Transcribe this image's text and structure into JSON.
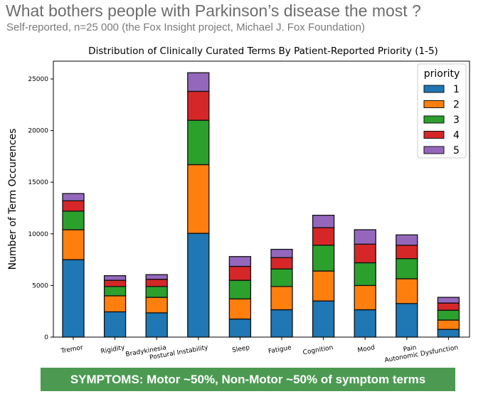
{
  "heading": "What bothers people with Parkinson’s disease the most ?",
  "subheading": "Self-reported, n=25 000 (the Fox Insight project, Michael J. Fox Foundation)",
  "banner": "SYMPTOMS: Motor ~50%,  Non-Motor ~50% of symptom terms",
  "chart_data": {
    "type": "bar",
    "stacked": true,
    "title": "Distribution of Clinically Curated Terms By Patient-Reported Priority (1-5)",
    "xlabel": "",
    "ylabel": "Number of Term Occurences",
    "ylim": [
      0,
      26500
    ],
    "yticks": [
      0,
      5000,
      10000,
      15000,
      20000,
      25000
    ],
    "categories": [
      "Tremor",
      "Rigidity",
      "Bradykinesia",
      "Postural Instability",
      "Sleep",
      "Fatigue",
      "Cognition",
      "Mood",
      "Pain",
      "Autonomic Dysfunction"
    ],
    "legend_title": "priority",
    "legend_position": "top-right",
    "series": [
      {
        "name": "1",
        "color": "#1f77b4",
        "values": [
          7500,
          2450,
          2350,
          10050,
          1750,
          2650,
          3500,
          2650,
          3250,
          750
        ]
      },
      {
        "name": "2",
        "color": "#ff7f0e",
        "values": [
          2900,
          1550,
          1500,
          6650,
          1950,
          2250,
          2900,
          2350,
          2400,
          900
        ]
      },
      {
        "name": "3",
        "color": "#2ca02c",
        "values": [
          1800,
          900,
          1050,
          4300,
          1800,
          1700,
          2500,
          2200,
          1950,
          950
        ]
      },
      {
        "name": "4",
        "color": "#d62728",
        "values": [
          1000,
          600,
          700,
          2800,
          1350,
          1100,
          1700,
          1800,
          1300,
          700
        ]
      },
      {
        "name": "5",
        "color": "#9467bd",
        "values": [
          700,
          450,
          450,
          1800,
          950,
          800,
          1200,
          1400,
          1000,
          550
        ]
      }
    ]
  }
}
